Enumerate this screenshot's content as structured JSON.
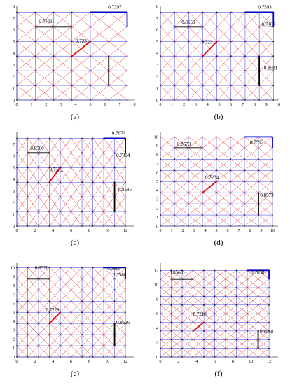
{
  "panels": [
    {
      "label": "(a)",
      "x_ticks": [
        0,
        1,
        2,
        3,
        4,
        5,
        6,
        7,
        8
      ],
      "y_ticks": [
        0,
        1,
        2,
        3,
        4,
        5,
        6,
        7,
        8
      ],
      "annotations": [
        "0.7397",
        "0.8562",
        "0.7231"
      ]
    },
    {
      "label": "(b)",
      "x_ticks": [
        0,
        1,
        2,
        3,
        4,
        5,
        6,
        7,
        8,
        9,
        10
      ],
      "y_ticks": [
        0,
        1,
        2,
        3,
        4,
        5,
        6,
        7,
        8
      ],
      "annotations": [
        "0.7593",
        "0.8559",
        "0.7397",
        "0.7231",
        "0.8581"
      ]
    },
    {
      "label": "(c)",
      "x_ticks": [
        0,
        2,
        4,
        6,
        8,
        10,
        12
      ],
      "y_ticks": [
        0,
        1,
        2,
        3,
        4,
        5,
        6,
        7
      ],
      "annotations": [
        "0.7674",
        "0.8560",
        "0.7394",
        "0.7232",
        "0.8585"
      ]
    },
    {
      "label": "(d)",
      "x_ticks": [
        0,
        1,
        2,
        3,
        4,
        5,
        6,
        7,
        8,
        9,
        10
      ],
      "y_ticks": [
        0,
        1,
        2,
        3,
        4,
        5,
        6,
        7,
        8,
        9,
        10
      ],
      "annotations": [
        "0.8573",
        "0.7592",
        "0.7234",
        "0.8573"
      ]
    },
    {
      "label": "(e)",
      "x_ticks": [
        0,
        2,
        4,
        6,
        8,
        10,
        12
      ],
      "y_ticks": [
        0,
        1,
        2,
        3,
        4,
        5,
        6,
        7,
        8,
        9,
        10
      ],
      "annotations": [
        "0.8570",
        "0.7669",
        "0.7586",
        "0.7229",
        "0.8526"
      ]
    },
    {
      "label": "(f)",
      "x_ticks": [
        0,
        2,
        4,
        6,
        8,
        10,
        12
      ],
      "y_ticks": [
        0,
        2,
        4,
        6,
        8,
        10,
        12
      ],
      "annotations": [
        "0.8568",
        "0.7658",
        "0.7218",
        "0.8568"
      ]
    }
  ]
}
